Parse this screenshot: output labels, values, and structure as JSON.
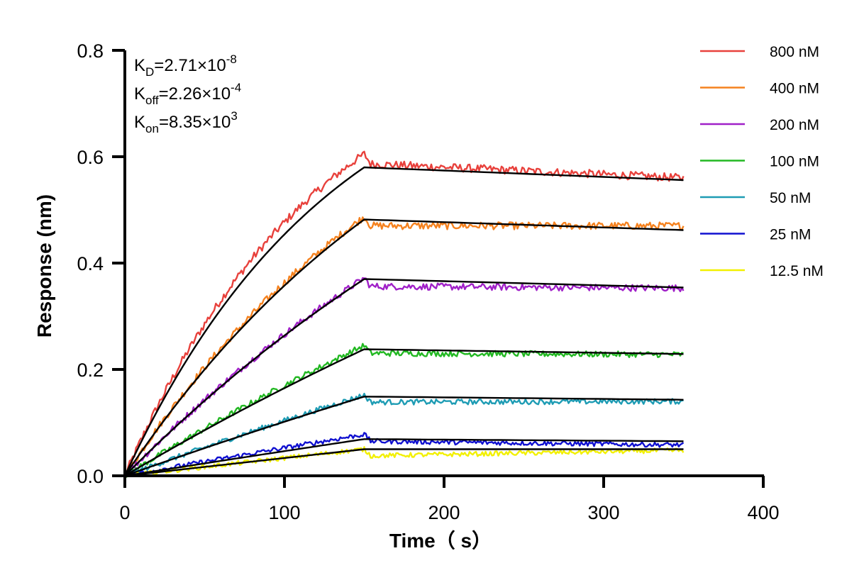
{
  "chart_data": {
    "type": "line",
    "title": "",
    "xlabel": "Time（ s）",
    "ylabel": "Response (nm)",
    "xlim": [
      0,
      400
    ],
    "ylim": [
      0,
      0.8
    ],
    "xticks": [
      0,
      100,
      200,
      300,
      400
    ],
    "xtick_labels": [
      "0",
      "100",
      "200",
      "300",
      "400"
    ],
    "yticks": [
      0,
      0.2,
      0.4,
      0.6,
      0.8
    ],
    "ytick_labels": [
      "0.0",
      "0.2",
      "0.4",
      "0.6",
      "0.8"
    ],
    "grid": false,
    "legend_position": "top-right",
    "association_end": 150,
    "dissociation_end": 350,
    "annotations": [
      {
        "base": "K",
        "sub": "D",
        "value": "=2.71×10",
        "exp": "-8"
      },
      {
        "base": "K",
        "sub": "off",
        "value": "=2.26×10",
        "exp": "-4"
      },
      {
        "base": "K",
        "sub": "on",
        "value": "=8.35×10",
        "exp": "3"
      }
    ],
    "fit_color": "#000000",
    "series": [
      {
        "name": "800 nM",
        "color": "#E8413C",
        "peak": 0.605,
        "fit_peak": 0.58,
        "end": 0.56,
        "fit_end": 0.556,
        "curvature": 1.2
      },
      {
        "name": "400 nM",
        "color": "#F5821F",
        "peak": 0.487,
        "fit_peak": 0.482,
        "end": 0.47,
        "fit_end": 0.462,
        "curvature": 0.75
      },
      {
        "name": "200 nM",
        "color": "#A020C8",
        "peak": 0.372,
        "fit_peak": 0.37,
        "end": 0.353,
        "fit_end": 0.354,
        "curvature": 0.45
      },
      {
        "name": "100 nM",
        "color": "#22B822",
        "peak": 0.245,
        "fit_peak": 0.238,
        "end": 0.228,
        "fit_end": 0.229,
        "curvature": 0.25
      },
      {
        "name": "50 nM",
        "color": "#1E9CB4",
        "peak": 0.152,
        "fit_peak": 0.149,
        "end": 0.14,
        "fit_end": 0.143,
        "curvature": 0.15
      },
      {
        "name": "25 nM",
        "color": "#1010D0",
        "peak": 0.078,
        "fit_peak": 0.069,
        "end": 0.058,
        "fit_end": 0.065,
        "curvature": 0.05
      },
      {
        "name": "12.5 nM",
        "color": "#F2F000",
        "peak": 0.05,
        "fit_peak": 0.05,
        "end": 0.048,
        "fit_end": 0.05,
        "curvature": 0.02
      }
    ]
  }
}
